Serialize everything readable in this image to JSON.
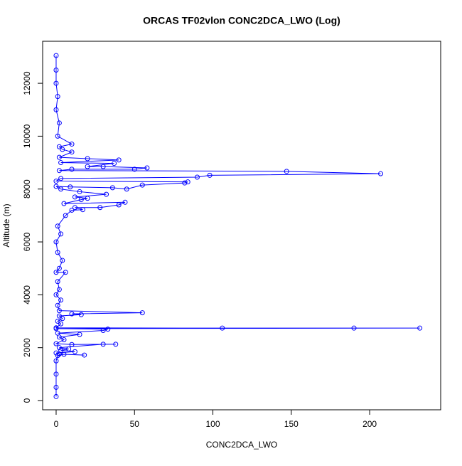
{
  "chart_data": {
    "type": "line",
    "title": "ORCAS TF02vlon CONC2DCA_LWO (Log)",
    "x_label": "CONC2DCA_LWO",
    "y_label": "Altitude (m)",
    "x": [
      0,
      0,
      0,
      0,
      1,
      5,
      18,
      2,
      0,
      12,
      3,
      8,
      2,
      30,
      38,
      10,
      0,
      5,
      2,
      15,
      1,
      30,
      33,
      0,
      232,
      190,
      106,
      0,
      3,
      1,
      4,
      2,
      16,
      10,
      55,
      2,
      1,
      3,
      0,
      2,
      1,
      6,
      0,
      2,
      4,
      1,
      0,
      3,
      1,
      6,
      10,
      17,
      12,
      28,
      40,
      44,
      5,
      16,
      20,
      12,
      32,
      15,
      3,
      0,
      9,
      36,
      45,
      55,
      82,
      84,
      0,
      3,
      90,
      98,
      207,
      147,
      2,
      10,
      50,
      58,
      30,
      20,
      37,
      3,
      40,
      20,
      2,
      10,
      4,
      2,
      10,
      1,
      2,
      0,
      1,
      0,
      0,
      0
    ],
    "series": [
      {
        "color": "#0000ff",
        "values": [
          150,
          500,
          1000,
          1500,
          1700,
          1750,
          1720,
          1760,
          1800,
          1850,
          1900,
          1950,
          2000,
          2130,
          2130,
          2120,
          2150,
          2300,
          2400,
          2500,
          2550,
          2650,
          2700,
          2720,
          2740,
          2740,
          2740,
          2750,
          2900,
          3000,
          3100,
          3200,
          3250,
          3280,
          3320,
          3400,
          3600,
          3800,
          4000,
          4200,
          4500,
          4850,
          4850,
          5000,
          5300,
          5600,
          6000,
          6300,
          6600,
          7000,
          7200,
          7220,
          7300,
          7300,
          7400,
          7500,
          7450,
          7600,
          7650,
          7700,
          7800,
          7900,
          8000,
          8100,
          8080,
          8050,
          8000,
          8150,
          8230,
          8270,
          8300,
          8400,
          8450,
          8520,
          8580,
          8670,
          8700,
          8750,
          8750,
          8800,
          8850,
          8850,
          8970,
          9000,
          9100,
          9150,
          9200,
          9400,
          9500,
          9600,
          9700,
          10000,
          10500,
          11000,
          11500,
          12000,
          12500,
          13050
        ]
      }
    ],
    "xlim": [
      -8.6,
      245.3
    ],
    "ylim": [
      -350,
      13590
    ],
    "xticks": [
      0,
      50,
      100,
      150,
      200
    ],
    "yticks": [
      0,
      2000,
      4000,
      6000,
      8000,
      10000,
      12000
    ]
  }
}
